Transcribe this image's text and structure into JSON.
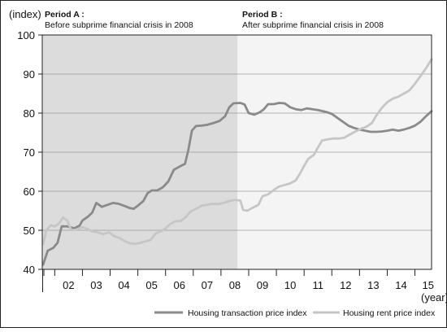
{
  "chart_data": {
    "type": "line",
    "y_unit_label": "(index)",
    "x_unit_label": "(year)",
    "ylim": [
      40,
      100
    ],
    "y_ticks": [
      40,
      50,
      60,
      70,
      80,
      90,
      100
    ],
    "xlim": [
      2001.55,
      2015.6
    ],
    "x_tick_labels": [
      "02",
      "03",
      "04",
      "05",
      "06",
      "07",
      "08",
      "09",
      "10",
      "11",
      "12",
      "13",
      "14",
      "15"
    ],
    "grid": true,
    "legend_position": "bottom-right",
    "periods": [
      {
        "id": "A",
        "title": "Period A :",
        "subtitle": "Before subprime financial crisis in 2008",
        "start": 2001.55,
        "end": 2008.6,
        "color": "#dcdcdc"
      },
      {
        "id": "B",
        "title": "Period B :",
        "subtitle": "After subprime financial crisis in 2008",
        "start": 2008.6,
        "end": 2015.6,
        "color": "#f4f4f4"
      }
    ],
    "series": [
      {
        "name": "Housing transaction price index",
        "color": "#8a8a8a",
        "points": [
          [
            2001.58,
            41.2
          ],
          [
            2001.75,
            44.8
          ],
          [
            2001.95,
            45.5
          ],
          [
            2002.1,
            46.8
          ],
          [
            2002.25,
            51
          ],
          [
            2002.45,
            51
          ],
          [
            2002.7,
            50.5
          ],
          [
            2002.9,
            51.2
          ],
          [
            2003.0,
            52.5
          ],
          [
            2003.2,
            53.5
          ],
          [
            2003.35,
            54.5
          ],
          [
            2003.5,
            57
          ],
          [
            2003.7,
            56
          ],
          [
            2003.9,
            56.5
          ],
          [
            2004.1,
            57
          ],
          [
            2004.3,
            56.8
          ],
          [
            2004.5,
            56.3
          ],
          [
            2004.7,
            55.7
          ],
          [
            2004.85,
            55.5
          ],
          [
            2005.0,
            56.3
          ],
          [
            2005.2,
            57.5
          ],
          [
            2005.35,
            59.5
          ],
          [
            2005.5,
            60.2
          ],
          [
            2005.7,
            60.2
          ],
          [
            2005.9,
            61
          ],
          [
            2006.1,
            62.5
          ],
          [
            2006.3,
            65.5
          ],
          [
            2006.5,
            66.3
          ],
          [
            2006.7,
            67
          ],
          [
            2006.82,
            70.5
          ],
          [
            2006.95,
            75.5
          ],
          [
            2007.1,
            76.7
          ],
          [
            2007.3,
            76.8
          ],
          [
            2007.5,
            77
          ],
          [
            2007.75,
            77.5
          ],
          [
            2007.95,
            78
          ],
          [
            2008.15,
            79.2
          ],
          [
            2008.3,
            81.5
          ],
          [
            2008.45,
            82.5
          ],
          [
            2008.7,
            82.6
          ],
          [
            2008.85,
            82.2
          ],
          [
            2009.0,
            80
          ],
          [
            2009.2,
            79.6
          ],
          [
            2009.4,
            80.2
          ],
          [
            2009.55,
            81
          ],
          [
            2009.7,
            82.3
          ],
          [
            2009.9,
            82.3
          ],
          [
            2010.1,
            82.6
          ],
          [
            2010.3,
            82.5
          ],
          [
            2010.5,
            81.5
          ],
          [
            2010.7,
            81
          ],
          [
            2010.9,
            80.8
          ],
          [
            2011.1,
            81.2
          ],
          [
            2011.3,
            81
          ],
          [
            2011.5,
            80.8
          ],
          [
            2011.8,
            80.3
          ],
          [
            2012.0,
            79.8
          ],
          [
            2012.2,
            78.8
          ],
          [
            2012.4,
            77.8
          ],
          [
            2012.6,
            76.8
          ],
          [
            2012.8,
            76.2
          ],
          [
            2013.0,
            75.8
          ],
          [
            2013.2,
            75.5
          ],
          [
            2013.4,
            75.2
          ],
          [
            2013.6,
            75.2
          ],
          [
            2013.8,
            75.3
          ],
          [
            2014.0,
            75.5
          ],
          [
            2014.2,
            75.8
          ],
          [
            2014.4,
            75.5
          ],
          [
            2014.6,
            75.8
          ],
          [
            2014.8,
            76.2
          ],
          [
            2015.0,
            76.8
          ],
          [
            2015.2,
            77.8
          ],
          [
            2015.4,
            79.2
          ],
          [
            2015.6,
            80.5
          ]
        ]
      },
      {
        "name": "Housing rent price index",
        "color": "#c6c6c6",
        "points": [
          [
            2001.58,
            46.5
          ],
          [
            2001.7,
            50
          ],
          [
            2001.85,
            51.3
          ],
          [
            2002.0,
            51
          ],
          [
            2002.15,
            51.7
          ],
          [
            2002.3,
            53.3
          ],
          [
            2002.45,
            52.5
          ],
          [
            2002.6,
            50
          ],
          [
            2002.8,
            50.2
          ],
          [
            2003.0,
            50.8
          ],
          [
            2003.2,
            50.3
          ],
          [
            2003.35,
            49.7
          ],
          [
            2003.55,
            49.5
          ],
          [
            2003.75,
            49
          ],
          [
            2003.95,
            49.5
          ],
          [
            2004.15,
            48.5
          ],
          [
            2004.35,
            48
          ],
          [
            2004.5,
            47.3
          ],
          [
            2004.7,
            46.7
          ],
          [
            2004.9,
            46.5
          ],
          [
            2005.1,
            46.8
          ],
          [
            2005.3,
            47.2
          ],
          [
            2005.45,
            47.5
          ],
          [
            2005.65,
            49.2
          ],
          [
            2005.85,
            49.8
          ],
          [
            2006.0,
            50.5
          ],
          [
            2006.15,
            51.5
          ],
          [
            2006.35,
            52.3
          ],
          [
            2006.55,
            52.4
          ],
          [
            2006.75,
            53.5
          ],
          [
            2006.9,
            54.8
          ],
          [
            2007.1,
            55.5
          ],
          [
            2007.3,
            56.3
          ],
          [
            2007.5,
            56.5
          ],
          [
            2007.7,
            56.8
          ],
          [
            2007.9,
            56.7
          ],
          [
            2008.1,
            57
          ],
          [
            2008.3,
            57.5
          ],
          [
            2008.5,
            57.8
          ],
          [
            2008.7,
            57.6
          ],
          [
            2008.8,
            55.2
          ],
          [
            2008.95,
            55
          ],
          [
            2009.15,
            55.8
          ],
          [
            2009.35,
            56.5
          ],
          [
            2009.5,
            58.7
          ],
          [
            2009.7,
            59.2
          ],
          [
            2009.9,
            60.3
          ],
          [
            2010.1,
            61.2
          ],
          [
            2010.3,
            61.6
          ],
          [
            2010.5,
            62
          ],
          [
            2010.7,
            62.8
          ],
          [
            2010.85,
            64.5
          ],
          [
            2011.0,
            66.5
          ],
          [
            2011.15,
            68.3
          ],
          [
            2011.35,
            69.3
          ],
          [
            2011.5,
            71.2
          ],
          [
            2011.65,
            73
          ],
          [
            2011.85,
            73.3
          ],
          [
            2012.05,
            73.5
          ],
          [
            2012.25,
            73.5
          ],
          [
            2012.45,
            73.7
          ],
          [
            2012.65,
            74.5
          ],
          [
            2012.85,
            75.3
          ],
          [
            2013.05,
            76
          ],
          [
            2013.25,
            76.5
          ],
          [
            2013.45,
            77.5
          ],
          [
            2013.6,
            79.3
          ],
          [
            2013.8,
            81.3
          ],
          [
            2014.0,
            82.8
          ],
          [
            2014.2,
            83.7
          ],
          [
            2014.4,
            84.2
          ],
          [
            2014.6,
            85
          ],
          [
            2014.8,
            85.8
          ],
          [
            2015.0,
            87.5
          ],
          [
            2015.2,
            89.5
          ],
          [
            2015.4,
            91.5
          ],
          [
            2015.6,
            93.8
          ]
        ]
      }
    ]
  }
}
